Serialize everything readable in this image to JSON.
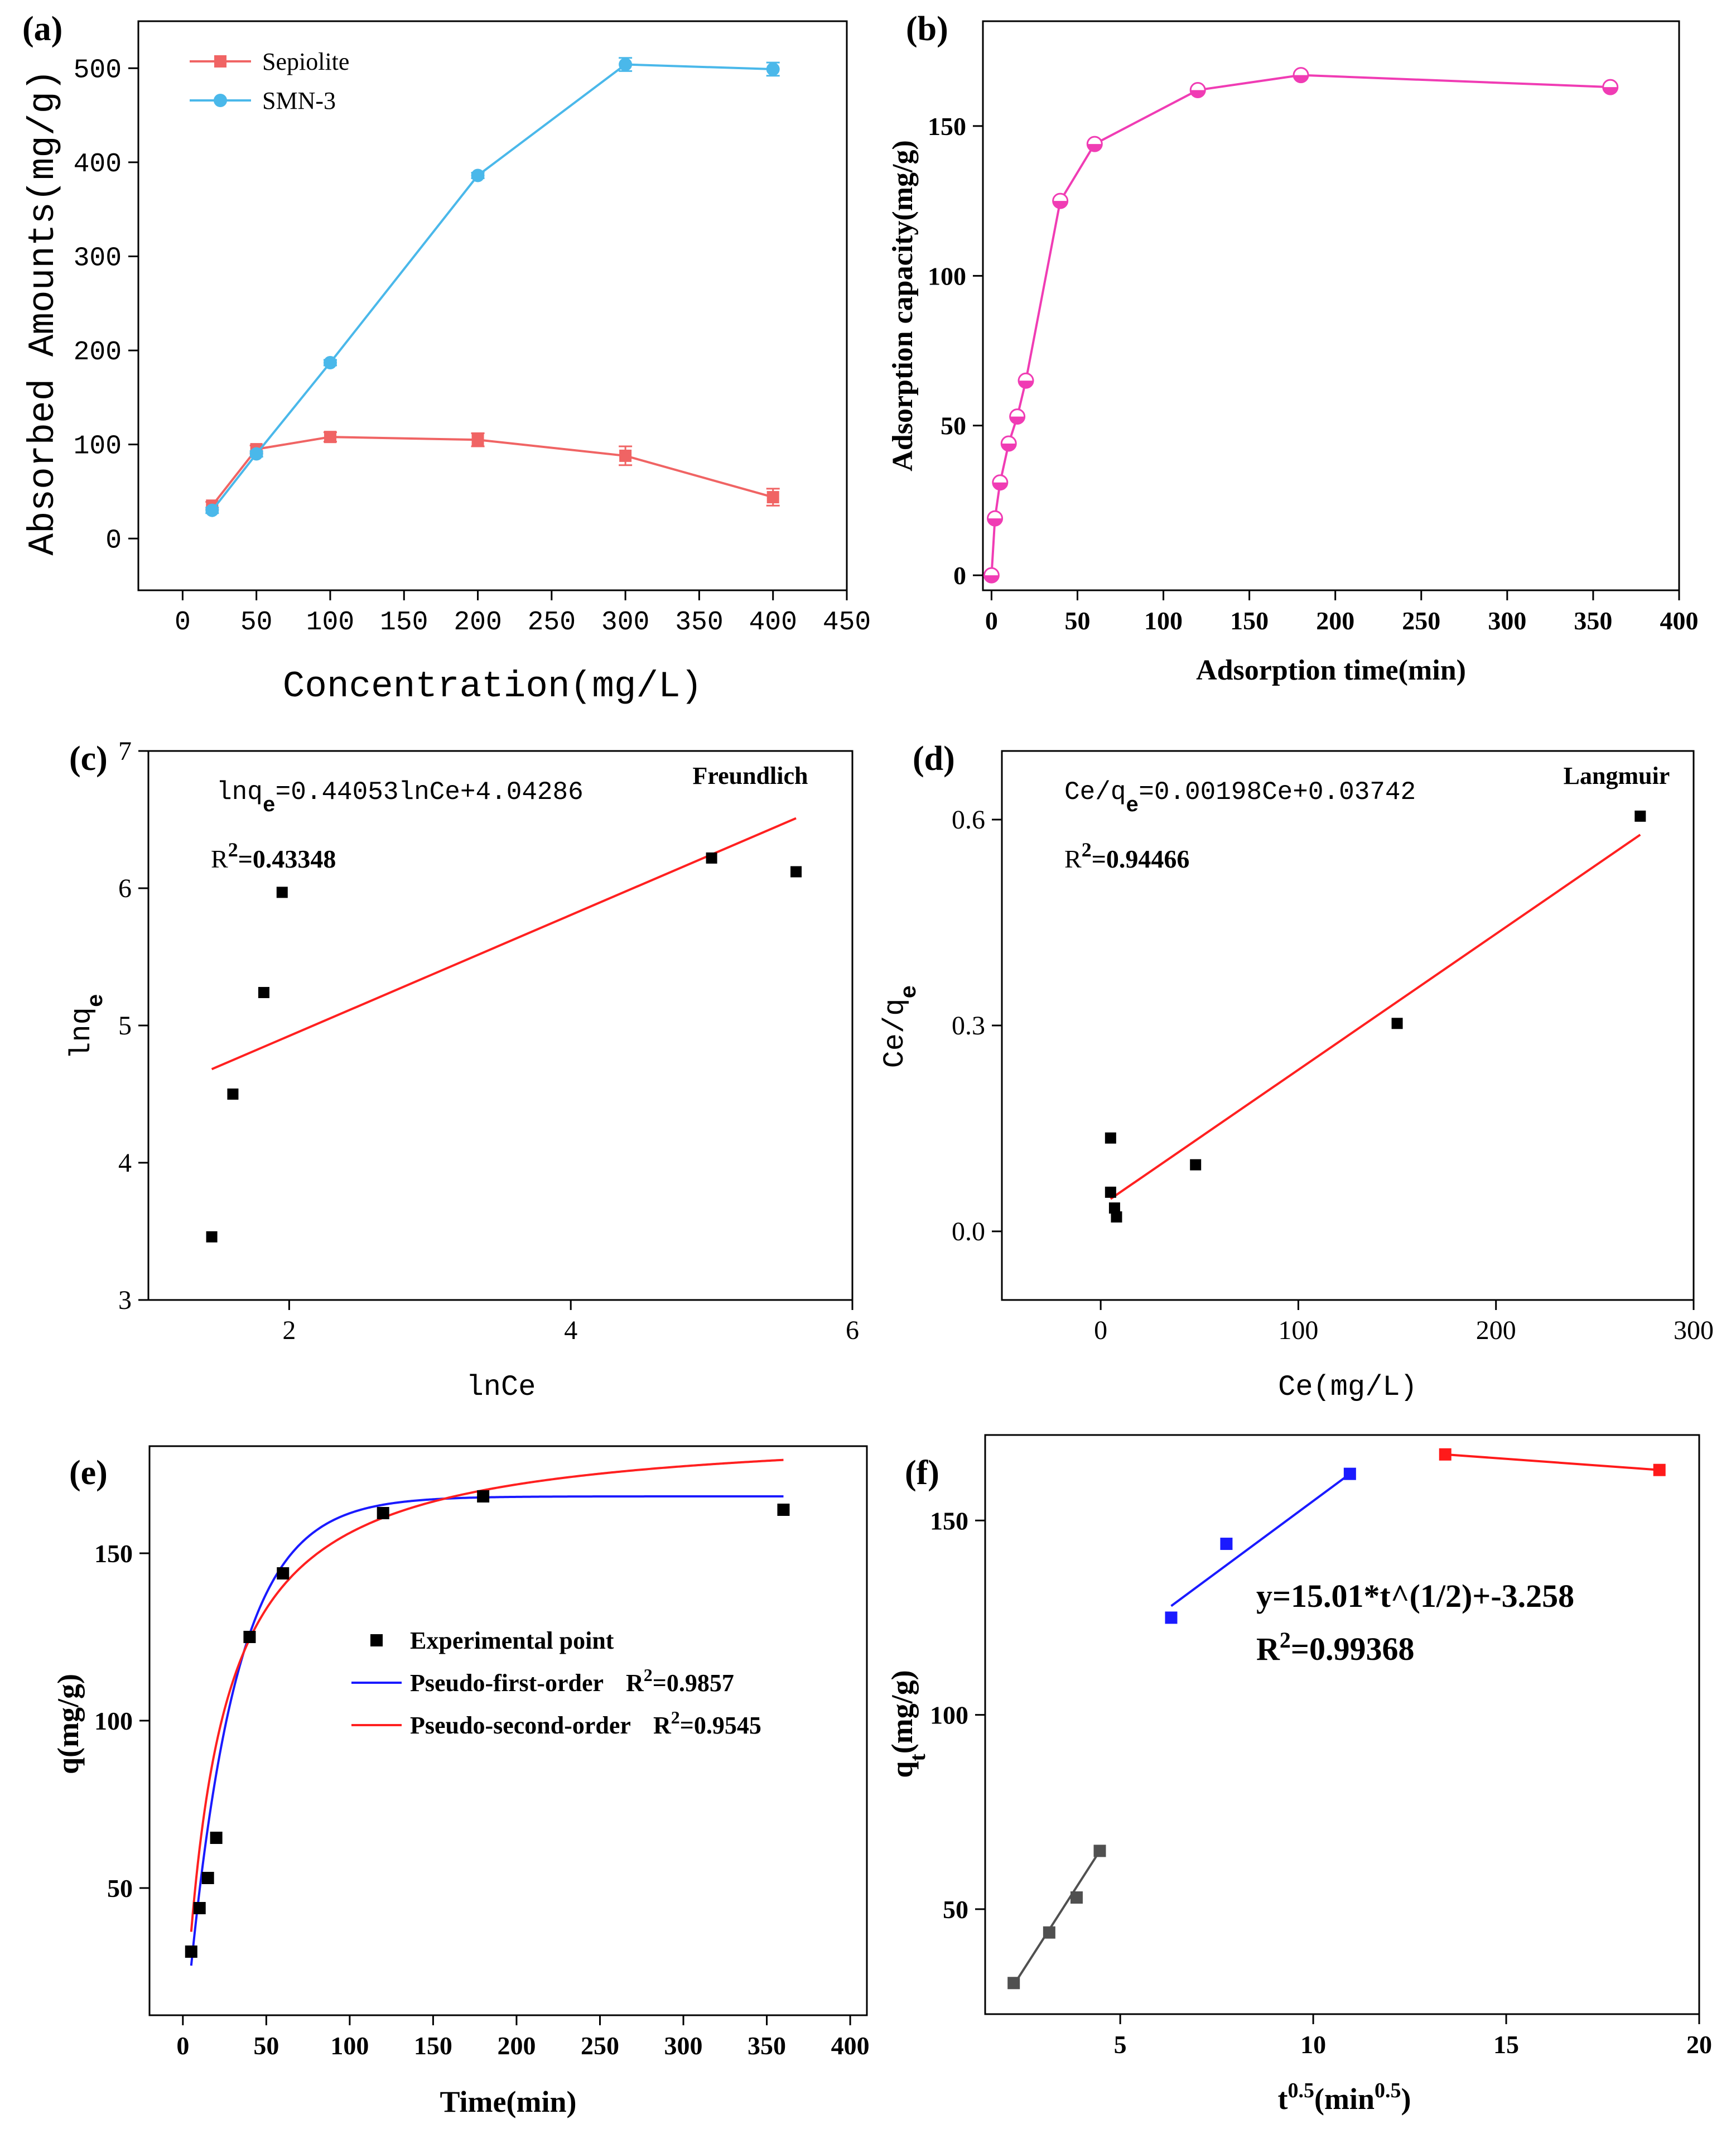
{
  "chart_data": [
    {
      "id": "a",
      "type": "line",
      "panel_label": "(a)",
      "xlabel": "Concentration(mg/L)",
      "ylabel": "Absorbed Amounts(mg/g)",
      "xlim": [
        -30,
        450
      ],
      "ylim": [
        -55,
        550
      ],
      "xticks": [
        0,
        50,
        100,
        150,
        200,
        250,
        300,
        350,
        400,
        450
      ],
      "yticks": [
        0,
        100,
        200,
        300,
        400,
        500
      ],
      "legend_position": "top-left",
      "series": [
        {
          "name": "Sepiolite",
          "color": "#f06464",
          "marker": "square",
          "x": [
            20,
            50,
            100,
            200,
            300,
            400
          ],
          "y": [
            35,
            95,
            108,
            105,
            88,
            44
          ],
          "err": [
            4,
            4,
            5,
            7,
            10,
            9
          ]
        },
        {
          "name": "SMN-3",
          "color": "#4ab8ea",
          "marker": "circle",
          "x": [
            20,
            50,
            100,
            200,
            300,
            400
          ],
          "y": [
            30,
            90,
            187,
            386,
            504,
            499
          ],
          "err": [
            3,
            3,
            3,
            3,
            7,
            7
          ]
        }
      ]
    },
    {
      "id": "b",
      "type": "line",
      "panel_label": "(b)",
      "xlabel": "Adsorption time(min)",
      "ylabel": "Adsorption capacity(mg/g)",
      "xlim": [
        -5,
        400
      ],
      "ylim": [
        -5,
        185
      ],
      "xticks": [
        0,
        50,
        100,
        150,
        200,
        250,
        300,
        350,
        400
      ],
      "yticks": [
        0,
        50,
        100,
        150
      ],
      "series": [
        {
          "name": "SMN-3",
          "color": "#f03cb4",
          "marker": "half-circle",
          "x": [
            0,
            2,
            5,
            10,
            15,
            20,
            40,
            60,
            120,
            180,
            360
          ],
          "y": [
            0,
            19,
            31,
            44,
            53,
            65,
            125,
            144,
            162,
            167,
            163
          ]
        }
      ]
    },
    {
      "id": "c",
      "type": "scatter",
      "panel_label": "(c)",
      "model_label": "Freundlich",
      "equation_lhs": "lnq",
      "equation_sub": "e",
      "equation_rhs": "=0.44053lnCe+4.04286",
      "r2_prefix": "R",
      "r2_sup": "2",
      "r2_value": "=0.43348",
      "xlabel": "lnCe",
      "ylabel_main": "lnq",
      "ylabel_sub": "e",
      "xlim": [
        1,
        6
      ],
      "ylim": [
        3,
        7
      ],
      "xticks": [
        2,
        4,
        6
      ],
      "yticks": [
        3,
        4,
        5,
        6,
        7
      ],
      "points": {
        "x": [
          1.45,
          1.6,
          1.82,
          1.95,
          5.0,
          5.6
        ],
        "y": [
          3.46,
          4.5,
          5.24,
          5.97,
          6.22,
          6.12
        ]
      },
      "fit": {
        "slope": 0.44053,
        "intercept": 4.04286,
        "x_range": [
          1.45,
          5.6
        ],
        "color": "#ff2020"
      }
    },
    {
      "id": "d",
      "type": "scatter",
      "panel_label": "(d)",
      "model_label": "Langmuir",
      "equation_lhs": "Ce/q",
      "equation_sub": "e",
      "equation_rhs": "=0.00198Ce+0.03742",
      "r2_prefix": "R",
      "r2_sup": "2",
      "r2_value": "=0.94466",
      "xlabel": "Ce(mg/L)",
      "ylabel_main": "Ce/q",
      "ylabel_sub": "e",
      "xlim": [
        -50,
        300
      ],
      "ylim": [
        -0.1,
        0.7
      ],
      "xticks": [
        0,
        100,
        200,
        300
      ],
      "ytick_values": [
        0.0,
        0.3,
        0.6
      ],
      "ytick_labels": [
        "0.0",
        "0.3",
        "0.6"
      ],
      "points": {
        "x": [
          5,
          5,
          7,
          8,
          48,
          150,
          273
        ],
        "y": [
          0.136,
          0.057,
          0.034,
          0.021,
          0.097,
          0.303,
          0.605
        ]
      },
      "fit": {
        "slope": 0.00198,
        "intercept": 0.03742,
        "x_range": [
          5,
          273
        ],
        "color": "#ff2020"
      }
    },
    {
      "id": "e",
      "type": "scatter",
      "panel_label": "(e)",
      "xlabel": "Time(min)",
      "ylabel": "q(mg/g)",
      "xlim": [
        -20,
        410
      ],
      "ylim": [
        12,
        182
      ],
      "xticks": [
        0,
        50,
        100,
        150,
        200,
        250,
        300,
        350,
        400
      ],
      "yticks": [
        50,
        100,
        150
      ],
      "legend": [
        {
          "label": "Experimental point",
          "r2_prefix": "",
          "r2_sup": "",
          "r2_value": ""
        },
        {
          "label": "Pseudo-first-order",
          "r2_prefix": "R",
          "r2_sup": "2",
          "r2_value": "=0.9857"
        },
        {
          "label": "Pseudo-second-order",
          "r2_prefix": "R",
          "r2_sup": "2",
          "r2_value": "=0.9545"
        }
      ],
      "points": {
        "x": [
          5,
          10,
          15,
          20,
          40,
          60,
          120,
          180,
          360
        ],
        "y": [
          31,
          44,
          53,
          65,
          125,
          144,
          162,
          167,
          163
        ]
      },
      "models": [
        {
          "name": "Pseudo-first-order",
          "color": "#1a1aff",
          "qe": 167,
          "k": 0.035,
          "x_range": [
            5,
            360
          ]
        },
        {
          "name": "Pseudo-second-order",
          "color": "#ff2020",
          "qe": 188,
          "k": 0.00026,
          "x_range": [
            5,
            360
          ]
        }
      ]
    },
    {
      "id": "f",
      "type": "scatter",
      "panel_label": "(f)",
      "xlabel_main": "t",
      "xlabel_sup": "0.5",
      "xlabel_mid": "(min",
      "xlabel_sup2": "0.5",
      "xlabel_end": ")",
      "ylabel_main": "q",
      "ylabel_sub": "t",
      "ylabel_end": "(mg/g)",
      "equation": "y=15.01*t^(1/2)+-3.258",
      "r2_prefix": "R",
      "r2_sup": "2",
      "r2_value": "=0.99368",
      "xlim": [
        1.5,
        20
      ],
      "ylim": [
        23,
        172
      ],
      "xticks": [
        5,
        10,
        15,
        20
      ],
      "yticks": [
        50,
        100,
        150
      ],
      "segments": [
        {
          "color": "#505050",
          "x": [
            2.24,
            3.16,
            3.87,
            4.47
          ],
          "y": [
            31,
            44,
            53,
            65
          ],
          "line_from": [
            2.24,
            30.5
          ],
          "line_to": [
            4.47,
            65
          ]
        },
        {
          "color": "#1a1aff",
          "x": [
            6.32,
            7.75,
            10.95
          ],
          "y": [
            125,
            144,
            162
          ],
          "line_from": [
            6.32,
            128
          ],
          "line_to": [
            10.95,
            162
          ]
        },
        {
          "color": "#ff1a1a",
          "x": [
            13.42,
            18.97
          ],
          "y": [
            167,
            163
          ],
          "line_from": [
            13.42,
            167
          ],
          "line_to": [
            18.97,
            163
          ]
        }
      ]
    }
  ]
}
